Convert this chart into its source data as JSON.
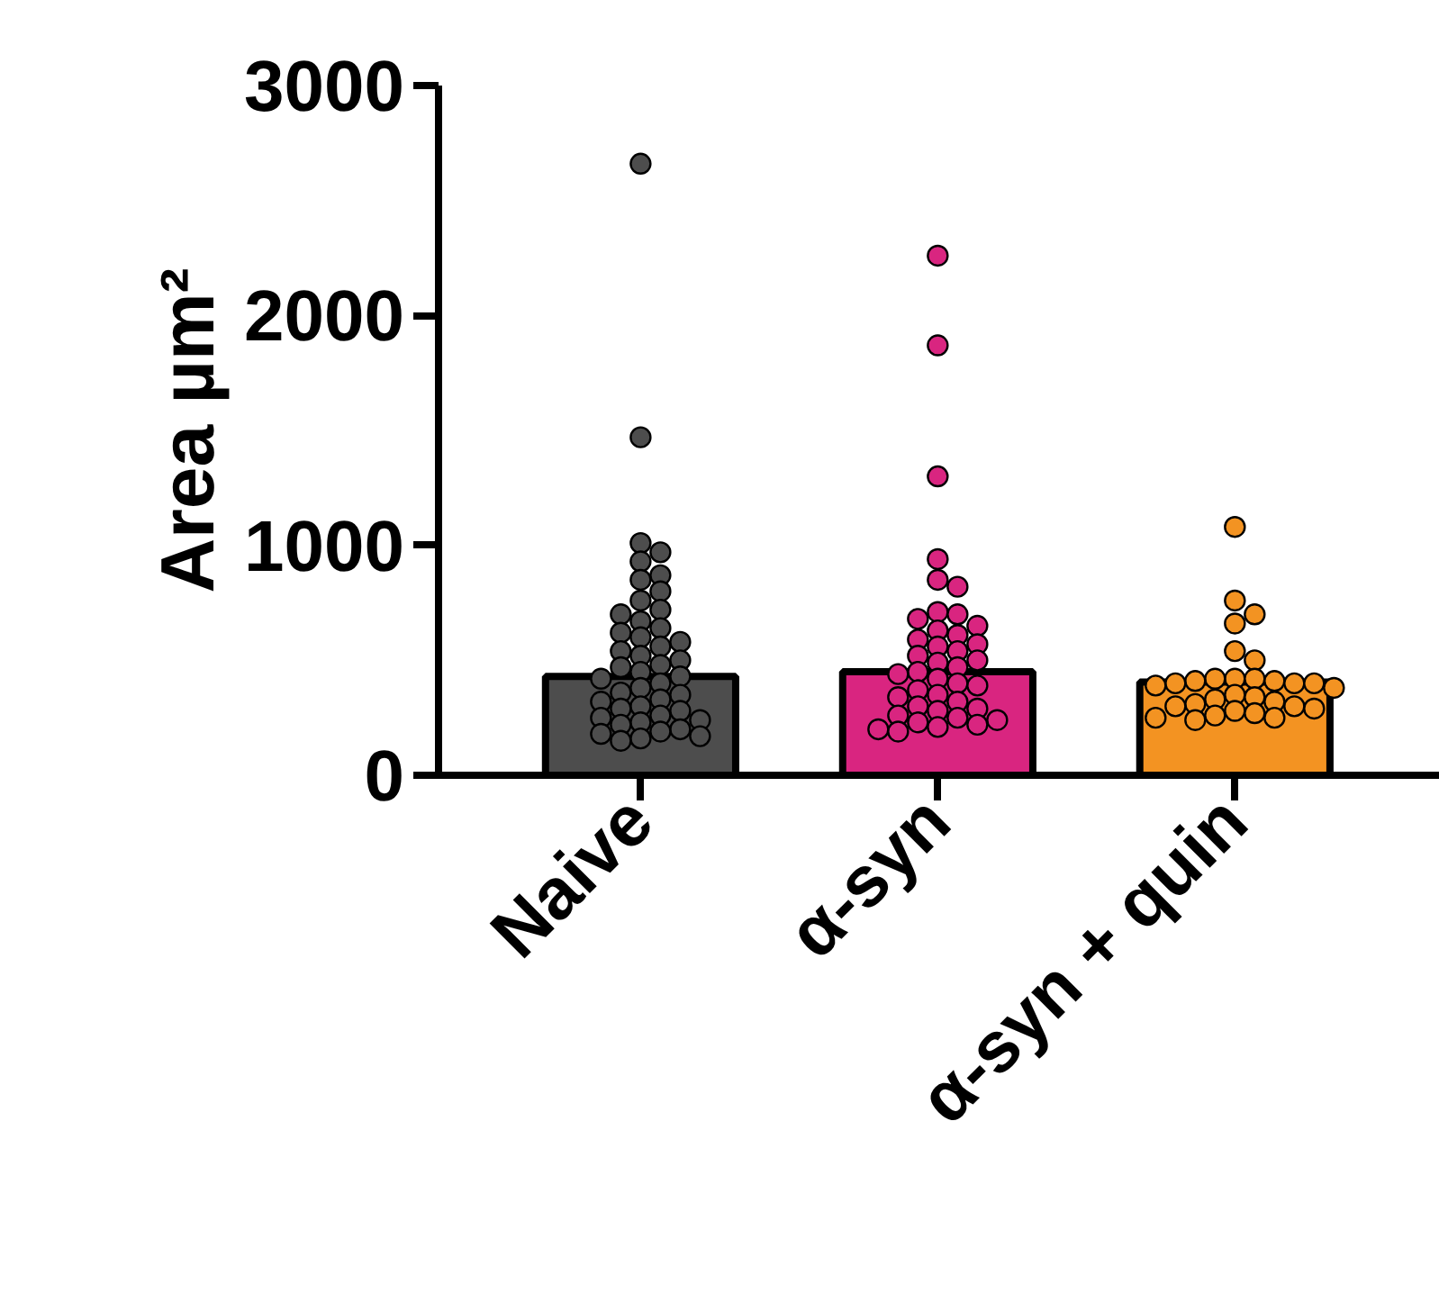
{
  "chart_data": {
    "type": "bar",
    "ylabel": "Area µm²",
    "categories": [
      "Naive",
      "α-syn",
      "α-syn + quin"
    ],
    "ylim": [
      0,
      3000
    ],
    "yticks": [
      0,
      1000,
      2000,
      3000
    ],
    "grid": false,
    "marker": "circle",
    "series": [
      {
        "colors": [
          "#4d4d4d",
          "#d92580",
          "#f39322"
        ],
        "values": [
          430,
          450,
          405
        ]
      },
      {
        "type": "scatter",
        "color": "#4d4d4d",
        "x": [
          "Naive",
          "Naive",
          "Naive",
          "Naive",
          "Naive",
          "Naive",
          "Naive",
          "Naive",
          "Naive",
          "Naive",
          "Naive",
          "Naive",
          "Naive",
          "Naive",
          "Naive",
          "Naive",
          "Naive",
          "Naive",
          "Naive",
          "Naive",
          "Naive",
          "Naive",
          "Naive",
          "Naive",
          "Naive",
          "Naive",
          "Naive",
          "Naive",
          "Naive",
          "Naive",
          "Naive",
          "Naive",
          "Naive",
          "Naive",
          "Naive",
          "Naive",
          "Naive",
          "Naive",
          "Naive",
          "Naive",
          "Naive",
          "Naive",
          "Naive",
          "Naive",
          "Naive"
        ],
        "values": [
          2660,
          1470,
          1010,
          970,
          930,
          870,
          850,
          800,
          760,
          720,
          700,
          670,
          640,
          620,
          600,
          580,
          560,
          540,
          520,
          500,
          480,
          470,
          450,
          430,
          420,
          400,
          380,
          360,
          350,
          330,
          320,
          300,
          290,
          280,
          260,
          250,
          240,
          230,
          220,
          200,
          190,
          180,
          170,
          160,
          150
        ]
      },
      {
        "type": "scatter",
        "color": "#d92580",
        "x": [
          "α-syn",
          "α-syn",
          "α-syn",
          "α-syn",
          "α-syn",
          "α-syn",
          "α-syn",
          "α-syn",
          "α-syn",
          "α-syn",
          "α-syn",
          "α-syn",
          "α-syn",
          "α-syn",
          "α-syn",
          "α-syn",
          "α-syn",
          "α-syn",
          "α-syn",
          "α-syn",
          "α-syn",
          "α-syn",
          "α-syn",
          "α-syn",
          "α-syn",
          "α-syn",
          "α-syn",
          "α-syn",
          "α-syn",
          "α-syn",
          "α-syn",
          "α-syn",
          "α-syn",
          "α-syn",
          "α-syn",
          "α-syn",
          "α-syn",
          "α-syn",
          "α-syn",
          "α-syn"
        ],
        "values": [
          2260,
          1870,
          1300,
          940,
          850,
          820,
          710,
          700,
          680,
          650,
          630,
          610,
          590,
          570,
          560,
          540,
          520,
          500,
          490,
          470,
          450,
          440,
          420,
          400,
          390,
          370,
          350,
          340,
          320,
          300,
          290,
          280,
          260,
          250,
          240,
          230,
          220,
          210,
          200,
          190
        ]
      },
      {
        "type": "scatter",
        "color": "#f39322",
        "x": [
          "α-syn + quin",
          "α-syn + quin",
          "α-syn + quin",
          "α-syn + quin",
          "α-syn + quin",
          "α-syn + quin",
          "α-syn + quin",
          "α-syn + quin",
          "α-syn + quin",
          "α-syn + quin",
          "α-syn + quin",
          "α-syn + quin",
          "α-syn + quin",
          "α-syn + quin",
          "α-syn + quin",
          "α-syn + quin",
          "α-syn + quin",
          "α-syn + quin",
          "α-syn + quin",
          "α-syn + quin",
          "α-syn + quin",
          "α-syn + quin",
          "α-syn + quin",
          "α-syn + quin",
          "α-syn + quin",
          "α-syn + quin",
          "α-syn + quin",
          "α-syn + quin",
          "α-syn + quin",
          "α-syn + quin"
        ],
        "values": [
          1080,
          760,
          700,
          660,
          540,
          500,
          420,
          420,
          420,
          410,
          410,
          400,
          400,
          400,
          390,
          380,
          350,
          340,
          330,
          320,
          310,
          300,
          300,
          290,
          280,
          270,
          260,
          250,
          250,
          240
        ]
      }
    ]
  }
}
